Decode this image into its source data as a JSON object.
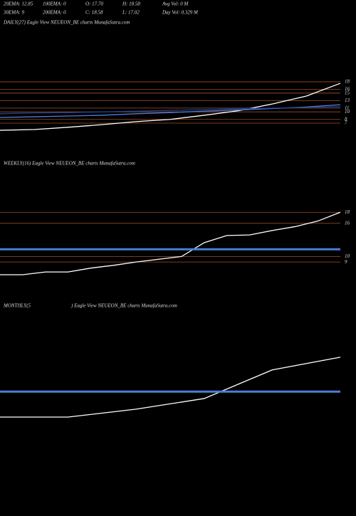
{
  "header": {
    "row1": [
      "20EMA: 12.85",
      "100EMA: 0",
      "O: 17.70",
      "H: 18.58",
      "Avg Vol: 0  M"
    ],
    "row2": [
      "30EMA: 9",
      "200EMA: 0",
      "C: 18.58",
      "L: 17.02",
      "Day Vol: 0.329 M"
    ]
  },
  "chart_data": [
    {
      "type": "line",
      "title": "DAILY(27) Eagle  View  NEUEON_BE charts MunafaSutra.com",
      "ylim": [
        -1.9,
        32.2
      ],
      "yticks": [
        18,
        16,
        15,
        13,
        11,
        10,
        8,
        7
      ],
      "tick_color": "#a0522d",
      "series": [
        {
          "color": "#ffffff",
          "line_width": 1.3,
          "values": [
            5.1,
            5.3,
            5.9,
            6.6,
            7.4,
            8.0,
            9.1,
            10.3,
            12.1,
            14.2,
            17.6
          ]
        },
        {
          "color": "#4a7fd6",
          "line_width": 1.3,
          "values": [
            8.5,
            8.7,
            8.9,
            9.1,
            9.5,
            9.8,
            10.2,
            10.5,
            10.9,
            11.3,
            11.9
          ]
        },
        {
          "color": "#1f3f8f",
          "line_width": 1.3,
          "values": [
            9.5,
            9.7,
            9.8,
            10.0,
            10.2,
            10.4,
            10.6,
            10.8,
            11.0,
            11.2,
            11.4
          ]
        }
      ]
    },
    {
      "type": "line",
      "title": "WEEKLY(16) Eagle  View  NEUEON_BE charts MunafaSutra.com",
      "ylim": [
        4.9,
        25.5
      ],
      "yticks": [
        18,
        16,
        10,
        9
      ],
      "tick_color": "#a0522d",
      "series": [
        {
          "color": "#ffffff",
          "line_width": 1.3,
          "values": [
            6.7,
            6.7,
            7.2,
            7.2,
            7.9,
            8.4,
            9.0,
            9.5,
            10.0,
            12.5,
            13.8,
            13.9,
            14.7,
            15.4,
            16.4,
            18.0
          ]
        },
        {
          "color": "#4a7fd6",
          "line_width": 3,
          "values": [
            11.3,
            11.3
          ]
        }
      ]
    },
    {
      "type": "line",
      "title": "MONTHLY(5",
      "subtitle": ") Eagle  View  NEUEON_BE charts MunafaSutra.com",
      "ylim": [
        -8.6,
        26.3
      ],
      "yticks": [],
      "tick_color": "#a0522d",
      "series": [
        {
          "color": "#ffffff",
          "line_width": 1.3,
          "values": [
            6.7,
            6.7,
            8.2,
            10.2,
            15.6,
            18.0
          ]
        },
        {
          "color": "#4a7fd6",
          "line_width": 3,
          "values": [
            11.5,
            11.5
          ]
        }
      ]
    }
  ]
}
